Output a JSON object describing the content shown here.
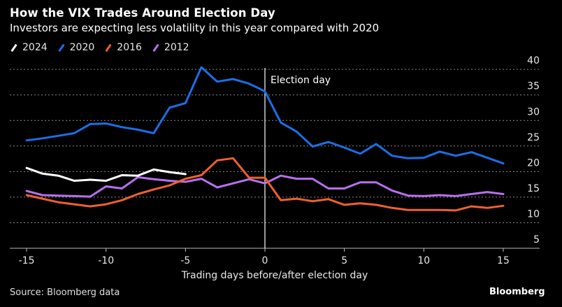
{
  "header": {
    "title": "How the VIX Trades Around Election Day",
    "subtitle": "Investors are expecting less volatility in this year compared with 2020"
  },
  "footer": {
    "source": "Source: Bloomberg data",
    "brand": "Bloomberg"
  },
  "chart_data": {
    "type": "line",
    "title": "How the VIX Trades Around Election Day",
    "subtitle": "Investors are expecting less volatility in this year compared with 2020",
    "xlabel": "Trading days before/after election day",
    "ylabel": "",
    "xlim": [
      -16,
      17.5
    ],
    "ylim": [
      5,
      40
    ],
    "x_ticks": [
      -15,
      -10,
      -5,
      0,
      5,
      10,
      15
    ],
    "x_tick_labels": [
      "-15",
      "-10",
      "-5",
      "0",
      "5",
      "10",
      "15"
    ],
    "y_ticks": [
      5,
      10,
      15,
      20,
      25,
      30,
      35,
      40
    ],
    "y_tick_labels": [
      "5",
      "10",
      "15",
      "20",
      "25",
      "30",
      "35",
      "40"
    ],
    "y_axis_side": "right",
    "grid": "horizontal-dotted",
    "legend_position": "top-left",
    "annotations": [
      {
        "type": "vline",
        "x": 0,
        "label": "Election day"
      }
    ],
    "series": [
      {
        "name": "2024",
        "color": "#ffffff",
        "x": [
          -15,
          -14,
          -13,
          -12,
          -11,
          -10,
          -9,
          -8,
          -7,
          -6,
          -5
        ],
        "values": [
          20.7,
          19.6,
          19.2,
          18.2,
          18.4,
          18.2,
          19.3,
          19.2,
          20.4,
          19.9,
          19.5
        ]
      },
      {
        "name": "2020",
        "color": "#1a6fe6",
        "x": [
          -15,
          -14,
          -13,
          -12,
          -11,
          -10,
          -9,
          -8,
          -7,
          -6,
          -5,
          -4,
          -3,
          -2,
          -1,
          0,
          1,
          2,
          3,
          4,
          5,
          6,
          7,
          8,
          9,
          10,
          11,
          12,
          13,
          14,
          15
        ],
        "values": [
          26.1,
          26.5,
          27.0,
          27.5,
          29.3,
          29.4,
          28.7,
          28.2,
          27.5,
          32.5,
          33.4,
          40.4,
          37.6,
          38.1,
          37.2,
          35.7,
          29.6,
          27.8,
          24.9,
          25.8,
          24.7,
          23.5,
          25.4,
          23.1,
          22.6,
          22.7,
          23.9,
          23.1,
          23.8,
          22.7,
          21.6
        ]
      },
      {
        "name": "2016",
        "color": "#f0602e",
        "x": [
          -15,
          -14,
          -13,
          -12,
          -11,
          -10,
          -9,
          -8,
          -7,
          -6,
          -5,
          -4,
          -3,
          -2,
          -1,
          0,
          1,
          2,
          3,
          4,
          5,
          6,
          7,
          8,
          9,
          10,
          11,
          12,
          13,
          14,
          15
        ],
        "values": [
          15.4,
          14.7,
          14.0,
          13.6,
          13.2,
          13.6,
          14.4,
          15.6,
          16.5,
          17.3,
          18.6,
          19.3,
          22.2,
          22.6,
          18.8,
          18.8,
          14.4,
          14.7,
          14.2,
          14.6,
          13.5,
          13.8,
          13.5,
          12.9,
          12.5,
          12.5,
          12.5,
          12.4,
          13.2,
          12.9,
          13.3
        ]
      },
      {
        "name": "2012",
        "color": "#b86ff0",
        "x": [
          -15,
          -14,
          -13,
          -12,
          -11,
          -10,
          -9,
          -8,
          -7,
          -6,
          -5,
          -4,
          -3,
          -2,
          -1,
          0,
          1,
          2,
          3,
          4,
          5,
          6,
          7,
          8,
          9,
          10,
          11,
          12,
          13,
          14,
          15
        ],
        "values": [
          16.2,
          15.4,
          15.3,
          15.2,
          15.1,
          17.1,
          16.7,
          18.9,
          18.5,
          18.2,
          18.0,
          18.6,
          16.9,
          17.7,
          18.5,
          17.7,
          19.2,
          18.6,
          18.6,
          16.7,
          16.7,
          17.9,
          17.9,
          16.3,
          15.3,
          15.2,
          15.4,
          15.2,
          15.6,
          16.0,
          15.6
        ]
      }
    ]
  }
}
